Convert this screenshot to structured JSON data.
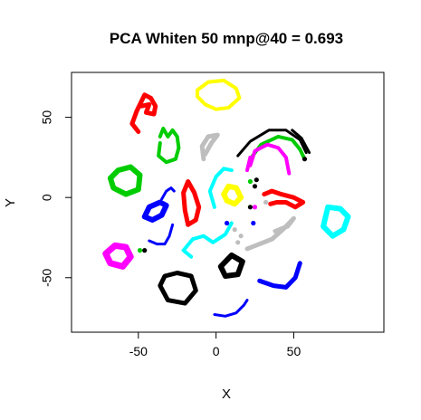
{
  "chart_data": {
    "type": "scatter",
    "title": "PCA Whiten 50 mnp@40 = 0.693",
    "xlabel": "X",
    "ylabel": "Y",
    "xlim": [
      -93,
      108
    ],
    "ylim": [
      -84,
      78
    ],
    "xticks": [
      -50,
      0,
      50
    ],
    "yticks": [
      -50,
      0,
      50
    ],
    "xtick_labels": [
      "-50",
      "0",
      "50"
    ],
    "ytick_labels": [
      "-50",
      "0",
      "50"
    ],
    "grid": false,
    "legend": "none",
    "colors": {
      "red": "#ff0000",
      "yellow": "#ffff00",
      "green": "#00cc00",
      "blue": "#0000ff",
      "black": "#000000",
      "gray": "#bebebe",
      "magenta": "#ff00ff",
      "cyan": "#00ffff"
    },
    "clusters": [
      {
        "color": "yellow",
        "points": [
          [
            -12,
            67
          ],
          [
            -5,
            72
          ],
          [
            5,
            73
          ],
          [
            13,
            68
          ],
          [
            15,
            62
          ],
          [
            8,
            56
          ],
          [
            0,
            55
          ],
          [
            -7,
            58
          ],
          [
            -12,
            63
          ]
        ],
        "closed": true,
        "width": 4
      },
      {
        "color": "red",
        "points": [
          [
            -50,
            41
          ],
          [
            -54,
            46
          ],
          [
            -51,
            54
          ],
          [
            -46,
            64
          ],
          [
            -42,
            62
          ],
          [
            -39,
            57
          ],
          [
            -40,
            52
          ],
          [
            -45,
            53
          ],
          [
            -43,
            58
          ],
          [
            -48,
            57
          ]
        ],
        "closed": false,
        "width": 5
      },
      {
        "color": "green",
        "points": [
          [
            -36,
            34
          ],
          [
            -37,
            26
          ],
          [
            -32,
            22
          ],
          [
            -26,
            24
          ],
          [
            -24,
            31
          ],
          [
            -25,
            38
          ],
          [
            -28,
            42
          ],
          [
            -31,
            38
          ],
          [
            -34,
            43
          ],
          [
            -36,
            38
          ]
        ],
        "closed": false,
        "width": 4
      },
      {
        "color": "gray",
        "points": [
          [
            -8,
            24
          ],
          [
            -9,
            32
          ],
          [
            -5,
            38
          ],
          [
            1,
            39
          ],
          [
            -3,
            34
          ],
          [
            -7,
            27
          ]
        ],
        "closed": false,
        "width": 5
      },
      {
        "color": "green",
        "points": [
          [
            -63,
            17
          ],
          [
            -55,
            19
          ],
          [
            -49,
            14
          ],
          [
            -50,
            5
          ],
          [
            -58,
            2
          ],
          [
            -66,
            6
          ],
          [
            -68,
            12
          ]
        ],
        "closed": true,
        "width": 6
      },
      {
        "color": "blue",
        "points": [
          [
            -41,
            -14
          ],
          [
            -35,
            -11
          ],
          [
            -32,
            -5
          ],
          [
            -36,
            -3
          ],
          [
            -43,
            -6
          ],
          [
            -46,
            -12
          ]
        ],
        "closed": true,
        "width": 6
      },
      {
        "color": "blue",
        "points": [
          [
            -35,
            -1
          ],
          [
            -32,
            4
          ],
          [
            -29,
            6
          ],
          [
            -27,
            4
          ]
        ],
        "closed": false,
        "width": 3
      },
      {
        "color": "blue",
        "points": [
          [
            -43,
            -27
          ],
          [
            -38,
            -29
          ],
          [
            -33,
            -29
          ],
          [
            -30,
            -24
          ],
          [
            -28,
            -17
          ]
        ],
        "closed": false,
        "width": 3
      },
      {
        "color": "red",
        "points": [
          [
            -18,
            -17
          ],
          [
            -13,
            -14
          ],
          [
            -11,
            -6
          ],
          [
            -14,
            3
          ],
          [
            -18,
            10
          ],
          [
            -21,
            3
          ],
          [
            -20,
            -8
          ]
        ],
        "closed": true,
        "width": 5
      },
      {
        "color": "magenta",
        "points": [
          [
            -65,
            -30
          ],
          [
            -58,
            -31
          ],
          [
            -55,
            -37
          ],
          [
            -60,
            -43
          ],
          [
            -68,
            -41
          ],
          [
            -71,
            -35
          ]
        ],
        "closed": true,
        "width": 7
      },
      {
        "color": "black",
        "points": [
          [
            -25,
            -47
          ],
          [
            -16,
            -49
          ],
          [
            -13,
            -58
          ],
          [
            -20,
            -66
          ],
          [
            -31,
            -64
          ],
          [
            -36,
            -55
          ],
          [
            -33,
            -49
          ]
        ],
        "closed": true,
        "width": 5
      },
      {
        "color": "cyan",
        "points": [
          [
            -16,
            -37
          ],
          [
            -21,
            -33
          ],
          [
            -15,
            -26
          ],
          [
            -8,
            -24
          ],
          [
            -2,
            -28
          ],
          [
            6,
            -23
          ],
          [
            10,
            -16
          ]
        ],
        "closed": false,
        "width": 4
      },
      {
        "color": "cyan",
        "points": [
          [
            -1,
            -6
          ],
          [
            -4,
            4
          ],
          [
            0,
            13
          ],
          [
            5,
            18
          ],
          [
            10,
            17
          ]
        ],
        "closed": false,
        "width": 4
      },
      {
        "color": "yellow",
        "points": [
          [
            7,
            -2
          ],
          [
            12,
            -4
          ],
          [
            16,
            0
          ],
          [
            13,
            6
          ],
          [
            8,
            7
          ],
          [
            5,
            2
          ]
        ],
        "closed": true,
        "width": 6
      },
      {
        "color": "gray",
        "points": [
          [
            20,
            -32
          ],
          [
            28,
            -29
          ],
          [
            36,
            -26
          ],
          [
            43,
            -20
          ],
          [
            50,
            -13
          ],
          [
            46,
            -18
          ],
          [
            38,
            -21
          ]
        ],
        "closed": false,
        "width": 5
      },
      {
        "color": "black",
        "points": [
          [
            3,
            -43
          ],
          [
            10,
            -36
          ],
          [
            17,
            -40
          ],
          [
            14,
            -48
          ],
          [
            6,
            -49
          ]
        ],
        "closed": true,
        "width": 6
      },
      {
        "color": "blue",
        "points": [
          [
            28,
            -52
          ],
          [
            37,
            -55
          ],
          [
            45,
            -56
          ],
          [
            51,
            -50
          ],
          [
            54,
            -41
          ]
        ],
        "closed": false,
        "width": 5
      },
      {
        "color": "blue",
        "points": [
          [
            -1,
            -73
          ],
          [
            6,
            -74
          ],
          [
            13,
            -72
          ],
          [
            18,
            -67
          ],
          [
            20,
            -64
          ]
        ],
        "closed": false,
        "width": 3
      },
      {
        "color": "cyan",
        "points": [
          [
            72,
            -6
          ],
          [
            80,
            -7
          ],
          [
            85,
            -12
          ],
          [
            82,
            -20
          ],
          [
            75,
            -24
          ],
          [
            69,
            -18
          ]
        ],
        "closed": true,
        "width": 6
      },
      {
        "color": "red",
        "points": [
          [
            31,
            2
          ],
          [
            36,
            4
          ],
          [
            42,
            2
          ],
          [
            50,
            0
          ],
          [
            56,
            -3
          ],
          [
            51,
            -6
          ],
          [
            45,
            -3
          ],
          [
            39,
            -3
          ],
          [
            35,
            -4
          ]
        ],
        "closed": false,
        "width": 5
      },
      {
        "color": "black",
        "points": [
          [
            14,
            26
          ],
          [
            22,
            35
          ],
          [
            34,
            42
          ],
          [
            45,
            42
          ],
          [
            54,
            36
          ],
          [
            58,
            28
          ]
        ],
        "closed": false,
        "width": 3
      },
      {
        "color": "green",
        "points": [
          [
            22,
            24
          ],
          [
            29,
            33
          ],
          [
            40,
            38
          ],
          [
            49,
            36
          ],
          [
            54,
            30
          ],
          [
            57,
            24
          ]
        ],
        "closed": false,
        "width": 4
      },
      {
        "color": "magenta",
        "points": [
          [
            22,
            20
          ],
          [
            25,
            29
          ],
          [
            33,
            33
          ],
          [
            40,
            31
          ],
          [
            45,
            25
          ],
          [
            47,
            15
          ]
        ],
        "closed": false,
        "width": 4
      },
      {
        "color": "black",
        "points": [
          [
            49,
            42
          ],
          [
            55,
            37
          ],
          [
            60,
            28
          ]
        ],
        "closed": false,
        "width": 3
      },
      {
        "color": "magenta",
        "points": [
          [
            20,
            17
          ],
          [
            22,
            25
          ]
        ],
        "closed": false,
        "width": 4
      }
    ],
    "scatter_points": [
      {
        "color": "gray",
        "x": 14,
        "y": -28
      },
      {
        "color": "gray",
        "x": 16,
        "y": -24
      },
      {
        "color": "gray",
        "x": 12,
        "y": -20
      },
      {
        "color": "gray",
        "x": 32,
        "y": -3
      },
      {
        "color": "black",
        "x": -46,
        "y": -33
      },
      {
        "color": "green",
        "x": -49,
        "y": -33
      },
      {
        "color": "blue",
        "x": 7,
        "y": -16
      },
      {
        "color": "blue",
        "x": 24,
        "y": -16
      },
      {
        "color": "black",
        "x": 22,
        "y": -6
      },
      {
        "color": "black",
        "x": 25,
        "y": 7
      },
      {
        "color": "black",
        "x": 26,
        "y": 11
      },
      {
        "color": "green",
        "x": 22,
        "y": 10
      },
      {
        "color": "magenta",
        "x": 25,
        "y": -6
      },
      {
        "color": "black",
        "x": 57,
        "y": 24
      }
    ]
  }
}
